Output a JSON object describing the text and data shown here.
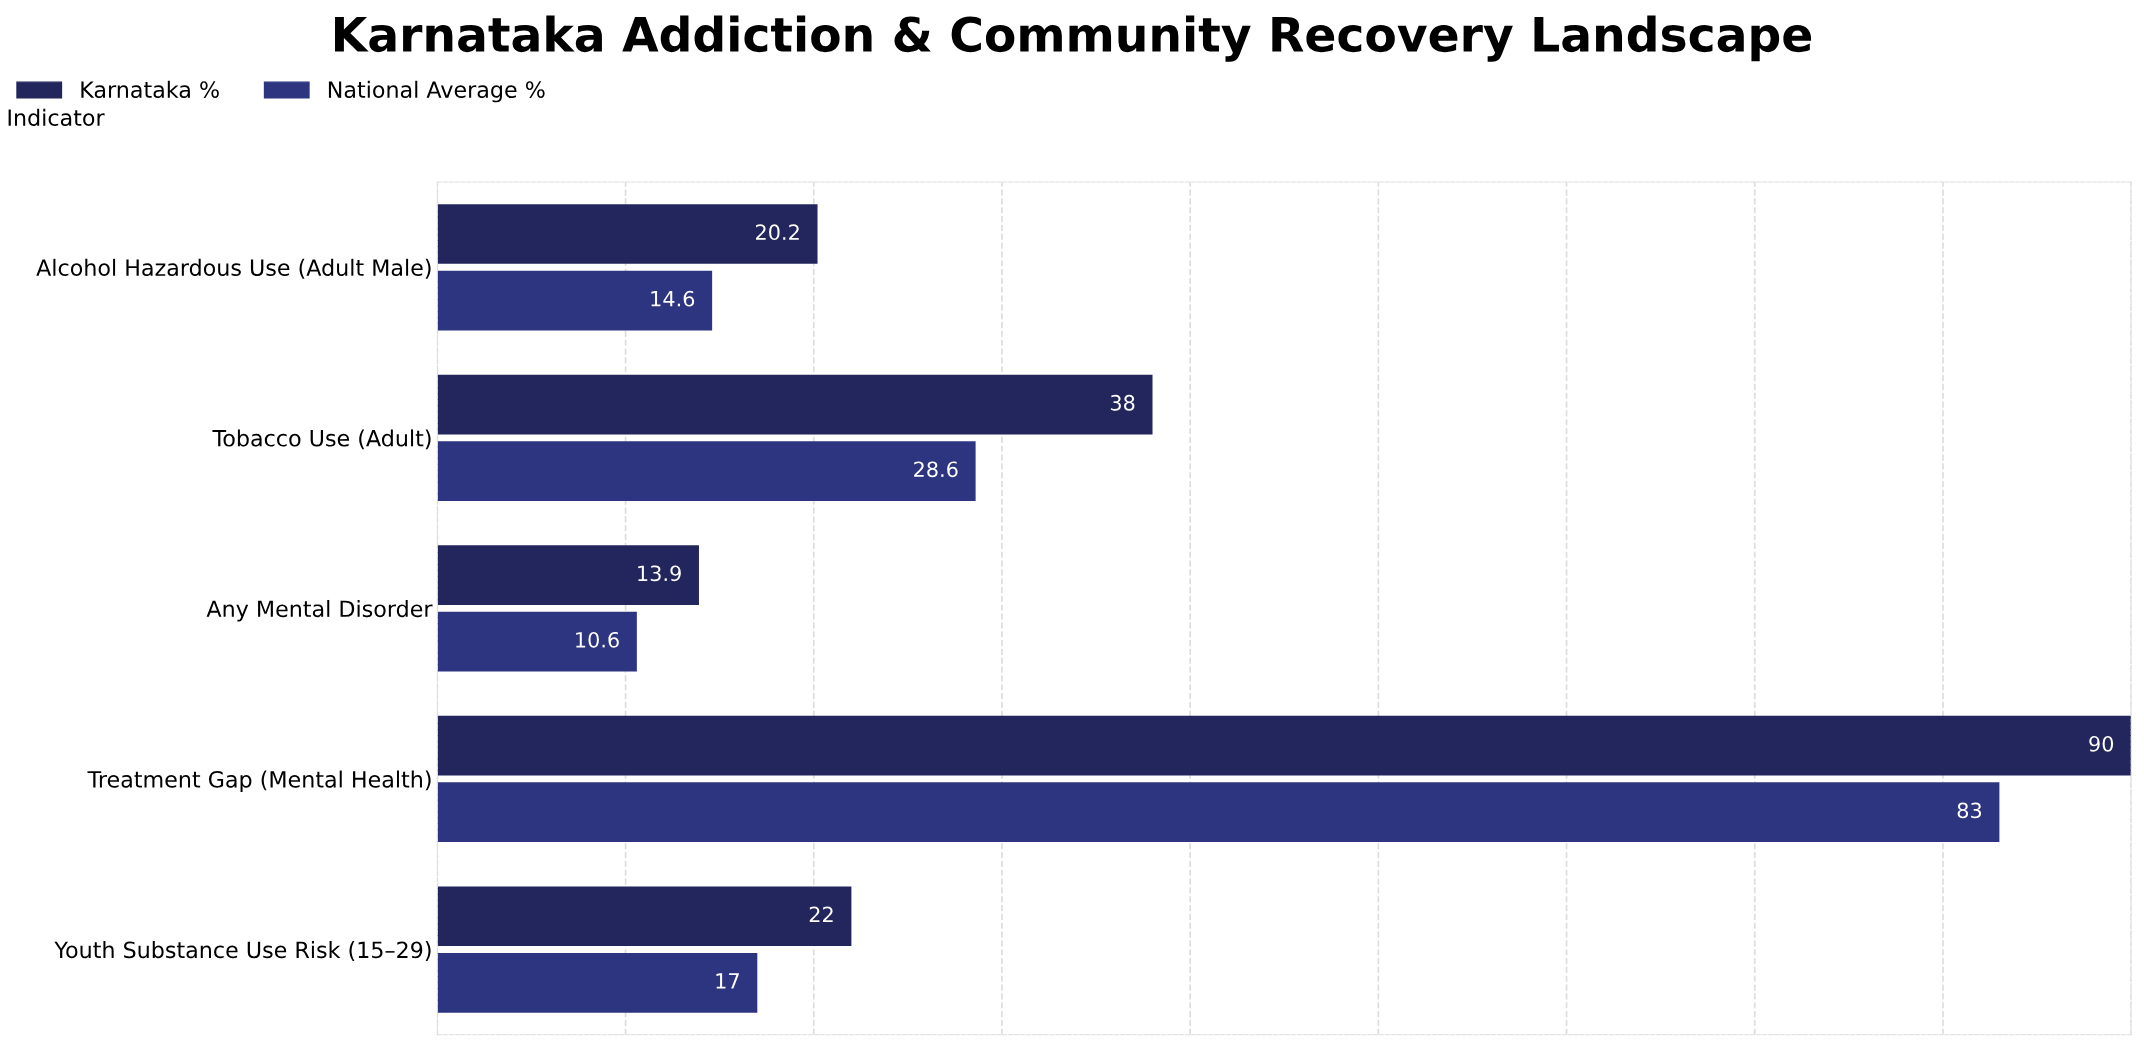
{
  "chart_data": {
    "type": "bar",
    "orientation": "horizontal",
    "title": "Karnataka Addiction & Community Recovery Landscape",
    "ylabel": "Indicator",
    "categories": [
      "Alcohol Hazardous Use (Adult Male)",
      "Tobacco Use (Adult)",
      "Any Mental Disorder",
      "Treatment Gap (Mental Health)",
      "Youth Substance Use Risk (15–29)"
    ],
    "series": [
      {
        "name": "Karnataka %",
        "color": "#23265c",
        "values": [
          20.2,
          38,
          13.9,
          90,
          22
        ]
      },
      {
        "name": "National Average %",
        "color": "#2e3580",
        "values": [
          14.6,
          28.6,
          10.6,
          83,
          17
        ]
      }
    ],
    "xlim": [
      0,
      90
    ],
    "xticks": [
      {
        "value": 0,
        "label": null
      },
      {
        "value": 10,
        "label": null
      },
      {
        "value": 20,
        "label": null
      },
      {
        "value": 30,
        "label": null
      },
      {
        "value": 40,
        "label": null
      },
      {
        "value": 50,
        "label": null
      },
      {
        "value": 60,
        "label": null
      },
      {
        "value": 70,
        "label": null
      },
      {
        "value": 80,
        "label": null
      },
      {
        "value": 90,
        "label": null
      }
    ],
    "tick_labels": "y",
    "grid": "x",
    "legend": "top left",
    "data_labels": true
  }
}
